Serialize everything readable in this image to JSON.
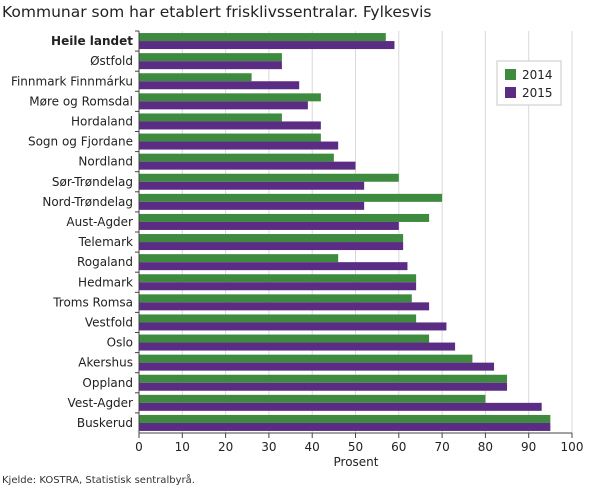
{
  "chart_data": {
    "type": "bar",
    "orientation": "horizontal",
    "title": "Kommunar som har etablert frisklivssentralar. Fylkesvis",
    "xlabel": "Prosent",
    "ylabel": "",
    "xlim": [
      0,
      100
    ],
    "xticks": [
      "0",
      "10",
      "20",
      "30",
      "40",
      "50",
      "60",
      "70",
      "80",
      "90",
      "100"
    ],
    "categories": [
      "Heile landet",
      "Østfold",
      "Finnmark Finnmárku",
      "Møre og Romsdal",
      "Hordaland",
      "Sogn og Fjordane",
      "Nordland",
      "Sør-Trøndelag",
      "Nord-Trøndelag",
      "Aust-Agder",
      "Telemark",
      "Rogaland",
      "Hedmark",
      "Troms Romsa",
      "Vestfold",
      "Oslo",
      "Akershus",
      "Oppland",
      "Vest-Agder",
      "Buskerud"
    ],
    "bold_categories": [
      "Heile landet"
    ],
    "series": [
      {
        "name": "2014",
        "color": "#3e8a3e",
        "values": [
          57,
          33,
          26,
          42,
          33,
          42,
          45,
          60,
          70,
          67,
          61,
          46,
          64,
          63,
          64,
          67,
          77,
          85,
          80,
          95
        ]
      },
      {
        "name": "2015",
        "color": "#5b2c83",
        "values": [
          59,
          33,
          37,
          39,
          42,
          46,
          50,
          52,
          52,
          60,
          61,
          62,
          64,
          67,
          71,
          73,
          82,
          85,
          93,
          95
        ]
      }
    ],
    "grid": "vertical",
    "legend": "top-right",
    "source": "Kjelde: KOSTRA, Statistisk sentralbyrå."
  }
}
